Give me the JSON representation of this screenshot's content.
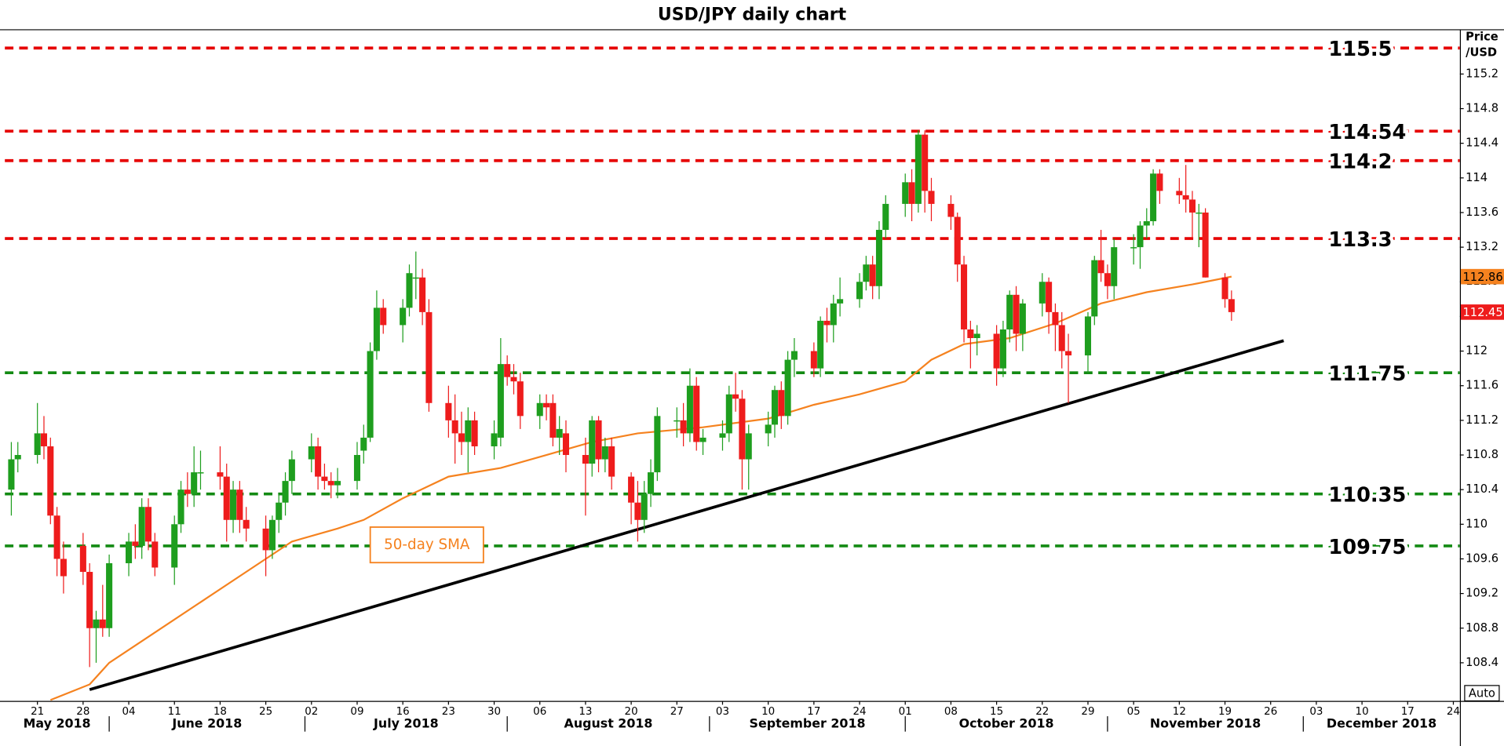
{
  "chart_data": {
    "type": "candlestick",
    "title": "USD/JPY daily chart",
    "y_label": [
      "Price",
      "/USD"
    ],
    "annotation": "50-day SMA",
    "up_color": "#1e9e1e",
    "down_color": "#ee1c1c",
    "ylim": [
      107.96,
      115.7
    ],
    "yticks": [
      108.4,
      108.8,
      109.2,
      109.6,
      110,
      110.4,
      110.8,
      111.2,
      111.6,
      112,
      112.4,
      112.8,
      113.2,
      113.6,
      114,
      114.4,
      114.8,
      115.2
    ],
    "xlim": [
      "2018-05-16",
      "2018-12-25"
    ],
    "xticks": [
      {
        "value": "2018-05-21",
        "label": "21"
      },
      {
        "value": "2018-05-28",
        "label": "28"
      },
      {
        "value": "2018-06-04",
        "label": "04"
      },
      {
        "value": "2018-06-11",
        "label": "11"
      },
      {
        "value": "2018-06-18",
        "label": "18"
      },
      {
        "value": "2018-06-25",
        "label": "25"
      },
      {
        "value": "2018-07-02",
        "label": "02"
      },
      {
        "value": "2018-07-09",
        "label": "09"
      },
      {
        "value": "2018-07-16",
        "label": "16"
      },
      {
        "value": "2018-07-23",
        "label": "23"
      },
      {
        "value": "2018-07-30",
        "label": "30"
      },
      {
        "value": "2018-08-06",
        "label": "06"
      },
      {
        "value": "2018-08-13",
        "label": "13"
      },
      {
        "value": "2018-08-20",
        "label": "20"
      },
      {
        "value": "2018-08-27",
        "label": "27"
      },
      {
        "value": "2018-09-03",
        "label": "03"
      },
      {
        "value": "2018-09-10",
        "label": "10"
      },
      {
        "value": "2018-09-17",
        "label": "17"
      },
      {
        "value": "2018-09-24",
        "label": "24"
      },
      {
        "value": "2018-10-01",
        "label": "01"
      },
      {
        "value": "2018-10-08",
        "label": "08"
      },
      {
        "value": "2018-10-15",
        "label": "15"
      },
      {
        "value": "2018-10-22",
        "label": "22"
      },
      {
        "value": "2018-10-29",
        "label": "29"
      },
      {
        "value": "2018-11-05",
        "label": "05"
      },
      {
        "value": "2018-11-12",
        "label": "12"
      },
      {
        "value": "2018-11-19",
        "label": "19"
      },
      {
        "value": "2018-11-26",
        "label": "26"
      },
      {
        "value": "2018-12-03",
        "label": "03"
      },
      {
        "value": "2018-12-10",
        "label": "10"
      },
      {
        "value": "2018-12-17",
        "label": "17"
      },
      {
        "value": "2018-12-24",
        "label": "24"
      }
    ],
    "months": [
      {
        "value": "2018-05-01",
        "label": "May 2018"
      },
      {
        "value": "2018-06-01",
        "label": "June 2018"
      },
      {
        "value": "2018-07-01",
        "label": "July 2018"
      },
      {
        "value": "2018-08-01",
        "label": "August 2018"
      },
      {
        "value": "2018-09-01",
        "label": "September 2018"
      },
      {
        "value": "2018-10-01",
        "label": "October 2018"
      },
      {
        "value": "2018-11-01",
        "label": "November 2018"
      },
      {
        "value": "2018-12-01",
        "label": "December 2018"
      }
    ],
    "x": [
      "2018-05-17",
      "2018-05-18",
      "2018-05-21",
      "2018-05-22",
      "2018-05-23",
      "2018-05-24",
      "2018-05-25",
      "2018-05-28",
      "2018-05-29",
      "2018-05-30",
      "2018-05-31",
      "2018-06-01",
      "2018-06-04",
      "2018-06-05",
      "2018-06-06",
      "2018-06-07",
      "2018-06-08",
      "2018-06-11",
      "2018-06-12",
      "2018-06-13",
      "2018-06-14",
      "2018-06-15",
      "2018-06-18",
      "2018-06-19",
      "2018-06-20",
      "2018-06-21",
      "2018-06-22",
      "2018-06-25",
      "2018-06-26",
      "2018-06-27",
      "2018-06-28",
      "2018-06-29",
      "2018-07-02",
      "2018-07-03",
      "2018-07-04",
      "2018-07-05",
      "2018-07-06",
      "2018-07-09",
      "2018-07-10",
      "2018-07-11",
      "2018-07-12",
      "2018-07-13",
      "2018-07-16",
      "2018-07-17",
      "2018-07-18",
      "2018-07-19",
      "2018-07-20",
      "2018-07-23",
      "2018-07-24",
      "2018-07-25",
      "2018-07-26",
      "2018-07-27",
      "2018-07-30",
      "2018-07-31",
      "2018-08-01",
      "2018-08-02",
      "2018-08-03",
      "2018-08-06",
      "2018-08-07",
      "2018-08-08",
      "2018-08-09",
      "2018-08-10",
      "2018-08-13",
      "2018-08-14",
      "2018-08-15",
      "2018-08-16",
      "2018-08-17",
      "2018-08-20",
      "2018-08-21",
      "2018-08-22",
      "2018-08-23",
      "2018-08-24",
      "2018-08-27",
      "2018-08-28",
      "2018-08-29",
      "2018-08-30",
      "2018-08-31",
      "2018-09-03",
      "2018-09-04",
      "2018-09-05",
      "2018-09-06",
      "2018-09-07",
      "2018-09-10",
      "2018-09-11",
      "2018-09-12",
      "2018-09-13",
      "2018-09-14",
      "2018-09-17",
      "2018-09-18",
      "2018-09-19",
      "2018-09-20",
      "2018-09-21",
      "2018-09-24",
      "2018-09-25",
      "2018-09-26",
      "2018-09-27",
      "2018-09-28",
      "2018-10-01",
      "2018-10-02",
      "2018-10-03",
      "2018-10-04",
      "2018-10-05",
      "2018-10-08",
      "2018-10-09",
      "2018-10-10",
      "2018-10-11",
      "2018-10-12",
      "2018-10-15",
      "2018-10-16",
      "2018-10-17",
      "2018-10-18",
      "2018-10-19",
      "2018-10-22",
      "2018-10-23",
      "2018-10-24",
      "2018-10-25",
      "2018-10-26",
      "2018-10-29",
      "2018-10-30",
      "2018-10-31",
      "2018-11-01",
      "2018-11-02",
      "2018-11-05",
      "2018-11-06",
      "2018-11-07",
      "2018-11-08",
      "2018-11-09",
      "2018-11-12",
      "2018-11-13",
      "2018-11-14",
      "2018-11-15",
      "2018-11-16",
      "2018-11-19",
      "2018-11-20"
    ],
    "ohlc": [
      [
        110.4,
        110.95,
        110.1,
        110.75
      ],
      [
        110.75,
        110.95,
        110.6,
        110.8
      ],
      [
        110.8,
        111.4,
        110.7,
        111.05
      ],
      [
        111.05,
        111.25,
        110.75,
        110.9
      ],
      [
        110.9,
        111.0,
        110.0,
        110.1
      ],
      [
        110.1,
        110.2,
        109.4,
        109.6
      ],
      [
        109.6,
        109.8,
        109.2,
        109.4
      ],
      [
        109.75,
        109.9,
        109.3,
        109.45
      ],
      [
        109.45,
        109.55,
        108.35,
        108.8
      ],
      [
        108.8,
        109.0,
        108.4,
        108.9
      ],
      [
        108.9,
        109.3,
        108.7,
        108.8
      ],
      [
        108.8,
        109.65,
        108.7,
        109.55
      ],
      [
        109.55,
        109.9,
        109.4,
        109.8
      ],
      [
        109.8,
        110.0,
        109.6,
        109.75
      ],
      [
        109.75,
        110.3,
        109.6,
        110.2
      ],
      [
        110.2,
        110.3,
        109.7,
        109.8
      ],
      [
        109.8,
        109.9,
        109.4,
        109.5
      ],
      [
        109.5,
        110.1,
        109.3,
        110.0
      ],
      [
        110.0,
        110.5,
        109.9,
        110.4
      ],
      [
        110.4,
        110.6,
        110.2,
        110.35
      ],
      [
        110.35,
        110.9,
        110.2,
        110.6
      ],
      [
        110.6,
        110.85,
        110.4,
        110.6
      ],
      [
        110.6,
        110.9,
        110.4,
        110.55
      ],
      [
        110.55,
        110.7,
        109.8,
        110.05
      ],
      [
        110.05,
        110.5,
        109.9,
        110.4
      ],
      [
        110.4,
        110.5,
        109.9,
        110.05
      ],
      [
        110.05,
        110.2,
        109.8,
        109.95
      ],
      [
        109.95,
        110.1,
        109.4,
        109.7
      ],
      [
        109.7,
        110.1,
        109.6,
        110.05
      ],
      [
        110.05,
        110.35,
        109.9,
        110.25
      ],
      [
        110.25,
        110.6,
        110.1,
        110.5
      ],
      [
        110.5,
        110.85,
        110.35,
        110.75
      ],
      [
        110.75,
        111.05,
        110.6,
        110.9
      ],
      [
        110.9,
        111.0,
        110.4,
        110.55
      ],
      [
        110.55,
        110.7,
        110.4,
        110.5
      ],
      [
        110.5,
        110.6,
        110.3,
        110.45
      ],
      [
        110.45,
        110.65,
        110.3,
        110.5
      ],
      [
        110.5,
        110.95,
        110.4,
        110.8
      ],
      [
        110.85,
        111.15,
        110.7,
        111.0
      ],
      [
        111.0,
        112.1,
        110.95,
        112.0
      ],
      [
        112.0,
        112.7,
        111.9,
        112.5
      ],
      [
        112.5,
        112.6,
        112.2,
        112.3
      ],
      [
        112.3,
        112.6,
        112.1,
        112.5
      ],
      [
        112.5,
        113.0,
        112.4,
        112.9
      ],
      [
        112.85,
        113.15,
        112.6,
        112.85
      ],
      [
        112.85,
        112.95,
        112.3,
        112.45
      ],
      [
        112.45,
        112.6,
        111.3,
        111.4
      ],
      [
        111.4,
        111.6,
        111.0,
        111.2
      ],
      [
        111.2,
        111.5,
        110.7,
        111.05
      ],
      [
        111.05,
        111.3,
        110.8,
        110.95
      ],
      [
        110.95,
        111.35,
        110.6,
        111.2
      ],
      [
        111.2,
        111.3,
        110.8,
        110.9
      ],
      [
        110.9,
        111.2,
        110.75,
        111.05
      ],
      [
        111.0,
        112.15,
        110.9,
        111.85
      ],
      [
        111.85,
        111.95,
        111.6,
        111.7
      ],
      [
        111.7,
        111.85,
        111.5,
        111.65
      ],
      [
        111.65,
        111.75,
        111.1,
        111.25
      ],
      [
        111.25,
        111.5,
        111.1,
        111.4
      ],
      [
        111.4,
        111.5,
        111.2,
        111.35
      ],
      [
        111.4,
        111.5,
        110.9,
        111.0
      ],
      [
        111.0,
        111.25,
        110.8,
        111.1
      ],
      [
        111.05,
        111.2,
        110.6,
        110.8
      ],
      [
        110.8,
        111.0,
        110.1,
        110.7
      ],
      [
        110.7,
        111.25,
        110.55,
        111.2
      ],
      [
        111.2,
        111.25,
        110.6,
        110.75
      ],
      [
        110.75,
        111.0,
        110.6,
        110.9
      ],
      [
        110.9,
        111.0,
        110.4,
        110.55
      ],
      [
        110.55,
        110.6,
        110.0,
        110.25
      ],
      [
        110.25,
        110.5,
        109.8,
        110.05
      ],
      [
        110.05,
        110.5,
        109.9,
        110.35
      ],
      [
        110.35,
        110.75,
        110.2,
        110.6
      ],
      [
        110.6,
        111.35,
        110.5,
        111.25
      ],
      [
        111.2,
        111.35,
        111.0,
        111.2
      ],
      [
        111.2,
        111.4,
        110.9,
        111.05
      ],
      [
        111.05,
        111.8,
        110.95,
        111.6
      ],
      [
        111.6,
        111.7,
        110.85,
        110.95
      ],
      [
        110.95,
        111.1,
        110.8,
        111.0
      ],
      [
        111.0,
        111.2,
        110.85,
        111.05
      ],
      [
        111.05,
        111.6,
        110.95,
        111.5
      ],
      [
        111.5,
        111.75,
        111.3,
        111.45
      ],
      [
        111.45,
        111.55,
        110.4,
        110.75
      ],
      [
        110.75,
        111.15,
        110.4,
        111.05
      ],
      [
        111.05,
        111.3,
        110.9,
        111.15
      ],
      [
        111.15,
        111.6,
        111.0,
        111.55
      ],
      [
        111.55,
        111.65,
        111.1,
        111.25
      ],
      [
        111.25,
        112.0,
        111.15,
        111.9
      ],
      [
        111.9,
        112.15,
        111.7,
        112.0
      ],
      [
        112.0,
        112.1,
        111.7,
        111.8
      ],
      [
        111.8,
        112.4,
        111.7,
        112.35
      ],
      [
        112.35,
        112.5,
        112.1,
        112.3
      ],
      [
        112.3,
        112.65,
        112.1,
        112.55
      ],
      [
        112.55,
        112.85,
        112.4,
        112.6
      ],
      [
        112.6,
        112.9,
        112.5,
        112.8
      ],
      [
        112.8,
        113.1,
        112.7,
        113.0
      ],
      [
        113.0,
        113.1,
        112.6,
        112.75
      ],
      [
        112.75,
        113.5,
        112.6,
        113.4
      ],
      [
        113.4,
        113.8,
        113.3,
        113.7
      ],
      [
        113.7,
        114.05,
        113.55,
        113.95
      ],
      [
        113.95,
        114.1,
        113.5,
        113.7
      ],
      [
        113.7,
        114.55,
        113.6,
        114.5
      ],
      [
        114.5,
        114.55,
        113.6,
        113.85
      ],
      [
        113.85,
        114.0,
        113.5,
        113.7
      ],
      [
        113.7,
        113.8,
        113.4,
        113.55
      ],
      [
        113.55,
        113.6,
        112.8,
        113.0
      ],
      [
        113.0,
        113.1,
        112.1,
        112.25
      ],
      [
        112.25,
        112.35,
        111.8,
        112.15
      ],
      [
        112.15,
        112.3,
        111.95,
        112.2
      ],
      [
        112.2,
        112.3,
        111.6,
        111.8
      ],
      [
        111.8,
        112.35,
        111.7,
        112.25
      ],
      [
        112.25,
        112.7,
        112.1,
        112.65
      ],
      [
        112.65,
        112.75,
        112.0,
        112.2
      ],
      [
        112.2,
        112.6,
        112.0,
        112.55
      ],
      [
        112.55,
        112.9,
        112.4,
        112.8
      ],
      [
        112.8,
        112.85,
        112.2,
        112.45
      ],
      [
        112.45,
        112.55,
        112.0,
        112.3
      ],
      [
        112.3,
        112.45,
        111.8,
        112.0
      ],
      [
        112.0,
        112.2,
        111.4,
        111.95
      ],
      [
        111.95,
        112.45,
        111.75,
        112.4
      ],
      [
        112.4,
        113.1,
        112.3,
        113.05
      ],
      [
        113.05,
        113.4,
        112.8,
        112.9
      ],
      [
        112.9,
        113.0,
        112.6,
        112.75
      ],
      [
        112.75,
        113.3,
        112.6,
        113.2
      ],
      [
        113.2,
        113.35,
        113.0,
        113.2
      ],
      [
        113.2,
        113.5,
        112.95,
        113.45
      ],
      [
        113.45,
        113.65,
        113.3,
        113.5
      ],
      [
        113.5,
        114.1,
        113.45,
        114.05
      ],
      [
        114.05,
        114.1,
        113.7,
        113.85
      ],
      [
        113.85,
        114.0,
        113.7,
        113.8
      ],
      [
        113.8,
        114.15,
        113.6,
        113.75
      ],
      [
        113.75,
        113.85,
        113.3,
        113.6
      ],
      [
        113.6,
        113.7,
        113.2,
        113.6
      ],
      [
        113.6,
        113.65,
        112.85,
        112.85
      ],
      [
        112.85,
        112.9,
        112.5,
        112.6
      ],
      [
        112.6,
        112.7,
        112.35,
        112.45
      ]
    ],
    "sma": {
      "name": "50-day SMA",
      "color": "#f5821f",
      "x": [
        "2018-05-23",
        "2018-05-29",
        "2018-06-01",
        "2018-06-08",
        "2018-06-15",
        "2018-06-22",
        "2018-06-29",
        "2018-07-06",
        "2018-07-10",
        "2018-07-16",
        "2018-07-23",
        "2018-07-31",
        "2018-08-07",
        "2018-08-14",
        "2018-08-21",
        "2018-08-31",
        "2018-09-10",
        "2018-09-17",
        "2018-09-24",
        "2018-10-01",
        "2018-10-05",
        "2018-10-10",
        "2018-10-17",
        "2018-10-24",
        "2018-10-31",
        "2018-11-07",
        "2018-11-14",
        "2018-11-20"
      ],
      "values": [
        107.97,
        108.15,
        108.4,
        108.75,
        109.1,
        109.45,
        109.8,
        109.95,
        110.05,
        110.3,
        110.55,
        110.65,
        110.8,
        110.95,
        111.05,
        111.12,
        111.22,
        111.38,
        111.5,
        111.65,
        111.9,
        112.08,
        112.15,
        112.32,
        112.55,
        112.68,
        112.77,
        112.86
      ]
    },
    "trendline": {
      "color": "#000000",
      "x": [
        "2018-05-29",
        "2018-11-28"
      ],
      "values": [
        108.09,
        112.12
      ]
    },
    "levels": [
      {
        "value": 115.5,
        "color": "#e60000"
      },
      {
        "value": 114.54,
        "color": "#e60000"
      },
      {
        "value": 114.2,
        "color": "#e60000"
      },
      {
        "value": 113.3,
        "color": "#e60000"
      },
      {
        "value": 111.75,
        "color": "#138a13"
      },
      {
        "value": 110.35,
        "color": "#138a13"
      },
      {
        "value": 109.75,
        "color": "#138a13"
      }
    ],
    "last_labels": [
      {
        "value": 112.86,
        "color": "#f5821f"
      },
      {
        "value": 112.45,
        "color": "#ee1c1c"
      }
    ]
  },
  "ui": {
    "auto_button": "Auto"
  }
}
